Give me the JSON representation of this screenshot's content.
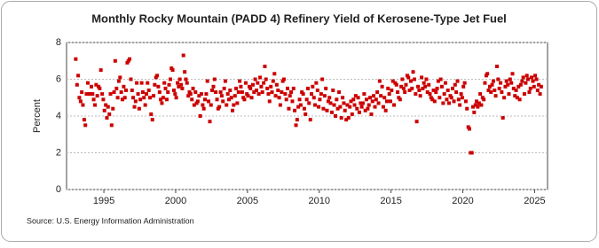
{
  "chart_data": {
    "type": "scatter",
    "title": "Monthly Rocky Mountain (PADD 4) Refinery Yield of Kerosene-Type Jet Fuel",
    "y_label": "Percent",
    "source": "Source: U.S. Energy Information Administration",
    "color": "#cc0000",
    "grid": true,
    "xlim": [
      1992.4,
      2025.9
    ],
    "xticks": [
      1995,
      2000,
      2005,
      2010,
      2015,
      2020,
      2025
    ],
    "ylim": [
      0,
      8
    ],
    "yticks": [
      0,
      2,
      4,
      6,
      8
    ],
    "x": [
      1993.04,
      1993.13,
      1993.21,
      1993.29,
      1993.38,
      1993.46,
      1993.54,
      1993.63,
      1993.71,
      1993.79,
      1993.88,
      1993.96,
      1994.04,
      1994.13,
      1994.21,
      1994.29,
      1994.38,
      1994.46,
      1994.54,
      1994.63,
      1994.71,
      1994.79,
      1994.88,
      1994.96,
      1995.04,
      1995.13,
      1995.21,
      1995.29,
      1995.38,
      1995.46,
      1995.54,
      1995.63,
      1995.71,
      1995.79,
      1995.88,
      1995.96,
      1996.04,
      1996.13,
      1996.21,
      1996.29,
      1996.38,
      1996.46,
      1996.54,
      1996.63,
      1996.71,
      1996.79,
      1996.88,
      1996.96,
      1997.04,
      1997.13,
      1997.21,
      1997.29,
      1997.38,
      1997.46,
      1997.54,
      1997.63,
      1997.71,
      1997.79,
      1997.88,
      1997.96,
      1998.04,
      1998.13,
      1998.21,
      1998.29,
      1998.38,
      1998.46,
      1998.54,
      1998.63,
      1998.71,
      1998.79,
      1998.88,
      1998.96,
      1999.04,
      1999.13,
      1999.21,
      1999.29,
      1999.38,
      1999.46,
      1999.54,
      1999.63,
      1999.71,
      1999.79,
      1999.88,
      1999.96,
      2000.04,
      2000.13,
      2000.21,
      2000.29,
      2000.38,
      2000.46,
      2000.54,
      2000.63,
      2000.71,
      2000.79,
      2000.88,
      2000.96,
      2001.04,
      2001.13,
      2001.21,
      2001.29,
      2001.38,
      2001.46,
      2001.54,
      2001.63,
      2001.71,
      2001.79,
      2001.88,
      2001.96,
      2002.04,
      2002.13,
      2002.21,
      2002.29,
      2002.38,
      2002.46,
      2002.54,
      2002.63,
      2002.71,
      2002.79,
      2002.88,
      2002.96,
      2003.04,
      2003.13,
      2003.21,
      2003.29,
      2003.38,
      2003.46,
      2003.54,
      2003.63,
      2003.71,
      2003.79,
      2003.88,
      2003.96,
      2004.04,
      2004.13,
      2004.21,
      2004.29,
      2004.38,
      2004.46,
      2004.54,
      2004.63,
      2004.71,
      2004.79,
      2004.88,
      2004.96,
      2005.04,
      2005.13,
      2005.21,
      2005.29,
      2005.38,
      2005.46,
      2005.54,
      2005.63,
      2005.71,
      2005.79,
      2005.88,
      2005.96,
      2006.04,
      2006.13,
      2006.21,
      2006.29,
      2006.38,
      2006.46,
      2006.54,
      2006.63,
      2006.71,
      2006.79,
      2006.88,
      2006.96,
      2007.04,
      2007.13,
      2007.21,
      2007.29,
      2007.38,
      2007.46,
      2007.54,
      2007.63,
      2007.71,
      2007.79,
      2007.88,
      2007.96,
      2008.04,
      2008.13,
      2008.21,
      2008.29,
      2008.38,
      2008.46,
      2008.54,
      2008.63,
      2008.71,
      2008.79,
      2008.88,
      2008.96,
      2009.04,
      2009.13,
      2009.21,
      2009.29,
      2009.38,
      2009.46,
      2009.54,
      2009.63,
      2009.71,
      2009.79,
      2009.88,
      2009.96,
      2010.04,
      2010.13,
      2010.21,
      2010.29,
      2010.38,
      2010.46,
      2010.54,
      2010.63,
      2010.71,
      2010.79,
      2010.88,
      2010.96,
      2011.04,
      2011.13,
      2011.21,
      2011.29,
      2011.38,
      2011.46,
      2011.54,
      2011.63,
      2011.71,
      2011.79,
      2011.88,
      2011.96,
      2012.04,
      2012.13,
      2012.21,
      2012.29,
      2012.38,
      2012.46,
      2012.54,
      2012.63,
      2012.71,
      2012.79,
      2012.88,
      2012.96,
      2013.04,
      2013.13,
      2013.21,
      2013.29,
      2013.38,
      2013.46,
      2013.54,
      2013.63,
      2013.71,
      2013.79,
      2013.88,
      2013.96,
      2014.04,
      2014.13,
      2014.21,
      2014.29,
      2014.38,
      2014.46,
      2014.54,
      2014.63,
      2014.71,
      2014.79,
      2014.88,
      2014.96,
      2015.04,
      2015.13,
      2015.21,
      2015.29,
      2015.38,
      2015.46,
      2015.54,
      2015.63,
      2015.71,
      2015.79,
      2015.88,
      2015.96,
      2016.04,
      2016.13,
      2016.21,
      2016.29,
      2016.38,
      2016.46,
      2016.54,
      2016.63,
      2016.71,
      2016.79,
      2016.88,
      2016.96,
      2017.04,
      2017.13,
      2017.21,
      2017.29,
      2017.38,
      2017.46,
      2017.54,
      2017.63,
      2017.71,
      2017.79,
      2017.88,
      2017.96,
      2018.04,
      2018.13,
      2018.21,
      2018.29,
      2018.38,
      2018.46,
      2018.54,
      2018.63,
      2018.71,
      2018.79,
      2018.88,
      2018.96,
      2019.04,
      2019.13,
      2019.21,
      2019.29,
      2019.38,
      2019.46,
      2019.54,
      2019.63,
      2019.71,
      2019.79,
      2019.88,
      2019.96,
      2020.04,
      2020.13,
      2020.21,
      2020.29,
      2020.38,
      2020.46,
      2020.54,
      2020.63,
      2020.71,
      2020.79,
      2020.88,
      2020.96,
      2021.04,
      2021.13,
      2021.21,
      2021.29,
      2021.38,
      2021.46,
      2021.54,
      2021.63,
      2021.71,
      2021.79,
      2021.88,
      2021.96,
      2022.04,
      2022.13,
      2022.21,
      2022.29,
      2022.38,
      2022.46,
      2022.54,
      2022.63,
      2022.71,
      2022.79,
      2022.88,
      2022.96,
      2023.04,
      2023.13,
      2023.21,
      2023.29,
      2023.38,
      2023.46,
      2023.54,
      2023.63,
      2023.71,
      2023.79,
      2023.88,
      2023.96,
      2024.04,
      2024.13,
      2024.21,
      2024.29,
      2024.38,
      2024.46,
      2024.54,
      2024.63,
      2024.71,
      2024.79,
      2024.88,
      2024.96,
      2025.04,
      2025.13,
      2025.21,
      2025.29,
      2025.38,
      2025.46
    ],
    "values": [
      7.1,
      5.7,
      6.2,
      5.0,
      4.8,
      5.3,
      4.6,
      3.8,
      3.5,
      5.2,
      5.8,
      5.2,
      5.2,
      5.6,
      5.2,
      4.9,
      4.6,
      5.7,
      5.1,
      5.6,
      5.5,
      6.5,
      5.2,
      4.9,
      4.3,
      4.6,
      3.9,
      4.5,
      4.1,
      5.2,
      3.5,
      4.4,
      5.3,
      7.0,
      5.5,
      5.0,
      5.9,
      6.1,
      5.3,
      4.9,
      5.6,
      5.0,
      5.4,
      6.9,
      7.0,
      7.1,
      6.0,
      5.4,
      5.0,
      4.5,
      4.8,
      5.8,
      5.2,
      4.4,
      4.9,
      5.8,
      5.3,
      5.0,
      4.6,
      5.2,
      5.8,
      5.4,
      5.0,
      4.1,
      3.8,
      5.1,
      5.7,
      6.1,
      6.2,
      5.6,
      5.3,
      4.9,
      4.7,
      5.0,
      5.8,
      5.5,
      4.9,
      5.3,
      5.7,
      6.0,
      6.6,
      6.5,
      5.4,
      5.2,
      5.0,
      5.8,
      5.6,
      6.0,
      5.7,
      5.5,
      7.3,
      6.4,
      6.0,
      5.8,
      5.1,
      5.3,
      5.2,
      4.9,
      5.5,
      4.6,
      5.3,
      4.7,
      4.8,
      5.1,
      4.0,
      5.2,
      4.6,
      4.4,
      4.9,
      5.2,
      5.9,
      4.8,
      3.7,
      4.6,
      5.4,
      5.6,
      6.0,
      5.3,
      4.9,
      4.4,
      4.5,
      5.3,
      5.1,
      4.8,
      5.5,
      5.9,
      4.6,
      5.2,
      4.9,
      5.4,
      5.0,
      4.3,
      4.6,
      5.1,
      5.5,
      4.7,
      5.3,
      5.9,
      5.6,
      5.3,
      5.0,
      4.9,
      5.8,
      5.2,
      5.1,
      5.6,
      5.5,
      5.0,
      5.7,
      5.3,
      6.0,
      5.4,
      5.8,
      5.2,
      6.1,
      5.6,
      5.3,
      5.8,
      6.7,
      6.0,
      5.5,
      5.2,
      4.8,
      5.6,
      5.3,
      5.9,
      6.3,
      5.1,
      5.7,
      5.4,
      5.0,
      4.6,
      5.3,
      5.9,
      6.0,
      5.2,
      4.9,
      5.5,
      4.4,
      5.1,
      5.3,
      4.8,
      5.5,
      4.3,
      3.5,
      3.8,
      4.5,
      4.9,
      4.6,
      5.3,
      5.2,
      4.4,
      4.1,
      4.9,
      5.5,
      4.7,
      3.8,
      5.2,
      5.6,
      5.0,
      4.6,
      5.8,
      5.4,
      4.5,
      4.9,
      5.2,
      6.0,
      4.4,
      5.1,
      5.5,
      4.3,
      4.8,
      5.0,
      4.7,
      4.2,
      5.4,
      4.6,
      4.0,
      4.9,
      4.4,
      5.3,
      4.5,
      3.9,
      5.0,
      4.7,
      4.3,
      3.8,
      4.6,
      3.9,
      4.5,
      4.8,
      4.1,
      4.9,
      4.6,
      5.1,
      4.4,
      5.0,
      4.2,
      4.7,
      4.5,
      4.7,
      5.2,
      4.3,
      4.9,
      4.4,
      4.6,
      5.0,
      4.1,
      4.8,
      5.1,
      4.5,
      4.9,
      5.3,
      4.7,
      5.9,
      5.1,
      5.6,
      4.5,
      5.0,
      4.3,
      4.8,
      5.5,
      5.2,
      4.8,
      5.4,
      5.9,
      4.6,
      5.8,
      5.7,
      5.3,
      5.0,
      4.9,
      5.6,
      6.0,
      5.5,
      5.3,
      5.7,
      6.2,
      6.1,
      5.4,
      5.9,
      5.5,
      6.4,
      6.0,
      5.2,
      3.7,
      5.6,
      5.4,
      5.1,
      6.1,
      5.5,
      5.8,
      5.6,
      6.0,
      5.3,
      5.7,
      5.2,
      5.0,
      4.9,
      5.4,
      4.8,
      5.3,
      5.5,
      5.9,
      5.0,
      6.0,
      5.6,
      4.7,
      5.2,
      5.8,
      4.9,
      5.4,
      4.7,
      5.1,
      5.0,
      5.5,
      4.8,
      5.7,
      5.3,
      5.9,
      4.9,
      4.6,
      5.2,
      5.0,
      5.6,
      5.8,
      4.8,
      4.4,
      3.4,
      3.3,
      2.0,
      2.0,
      4.5,
      4.2,
      4.6,
      4.8,
      4.5,
      4.7,
      5.2,
      4.6,
      5.0,
      4.9,
      5.8,
      6.2,
      6.3,
      5.4,
      5.6,
      5.3,
      5.7,
      5.9,
      5.4,
      5.1,
      6.7,
      6.0,
      5.5,
      5.8,
      5.3,
      3.9,
      5.0,
      5.6,
      5.9,
      5.7,
      5.2,
      6.0,
      5.8,
      6.3,
      5.5,
      5.1,
      5.4,
      5.0,
      5.6,
      4.9,
      5.7,
      5.9,
      6.1,
      5.2,
      5.8,
      6.2,
      6.0,
      5.3,
      5.5,
      6.1,
      5.9,
      5.6,
      6.2,
      6.0,
      5.4,
      5.7,
      5.2,
      5.6
    ]
  }
}
